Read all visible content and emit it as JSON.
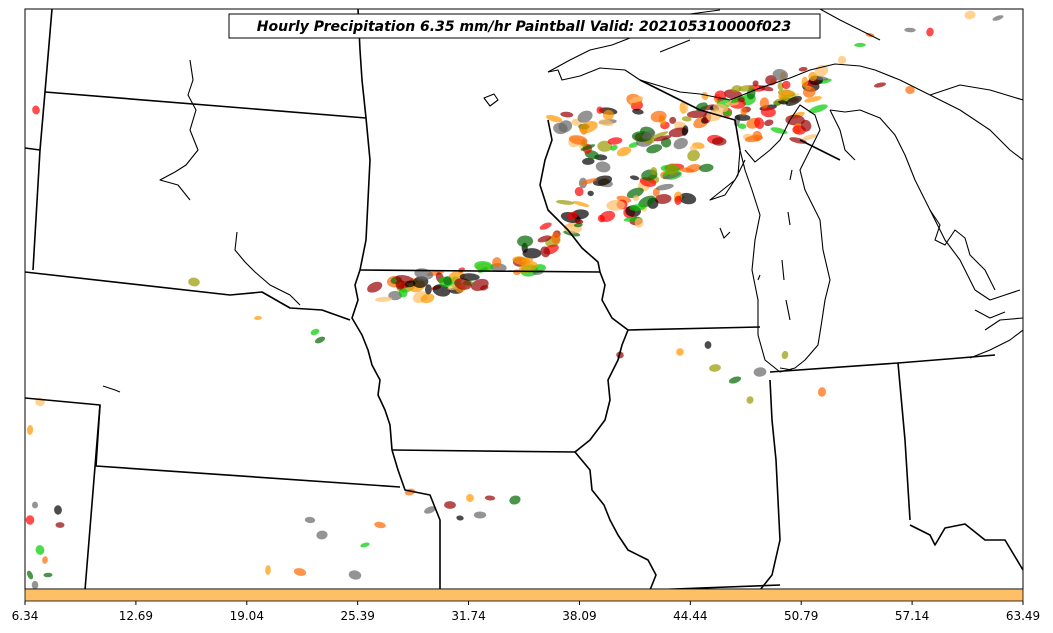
{
  "title": "Hourly Precipitation 6.35 mm/hr Paintball Valid: 202105310000f023",
  "colorbar": {
    "color": "#ffbf66",
    "ticks": [
      "6.34",
      "12.69",
      "19.04",
      "25.39",
      "31.74",
      "38.09",
      "44.44",
      "50.79",
      "57.14",
      "63.49"
    ]
  },
  "paintball_colors": [
    "#ff0000",
    "#ff6600",
    "#ff9900",
    "#999900",
    "#00cc00",
    "#006600",
    "#990000",
    "#000000",
    "#666666",
    "#ffbf66"
  ]
}
